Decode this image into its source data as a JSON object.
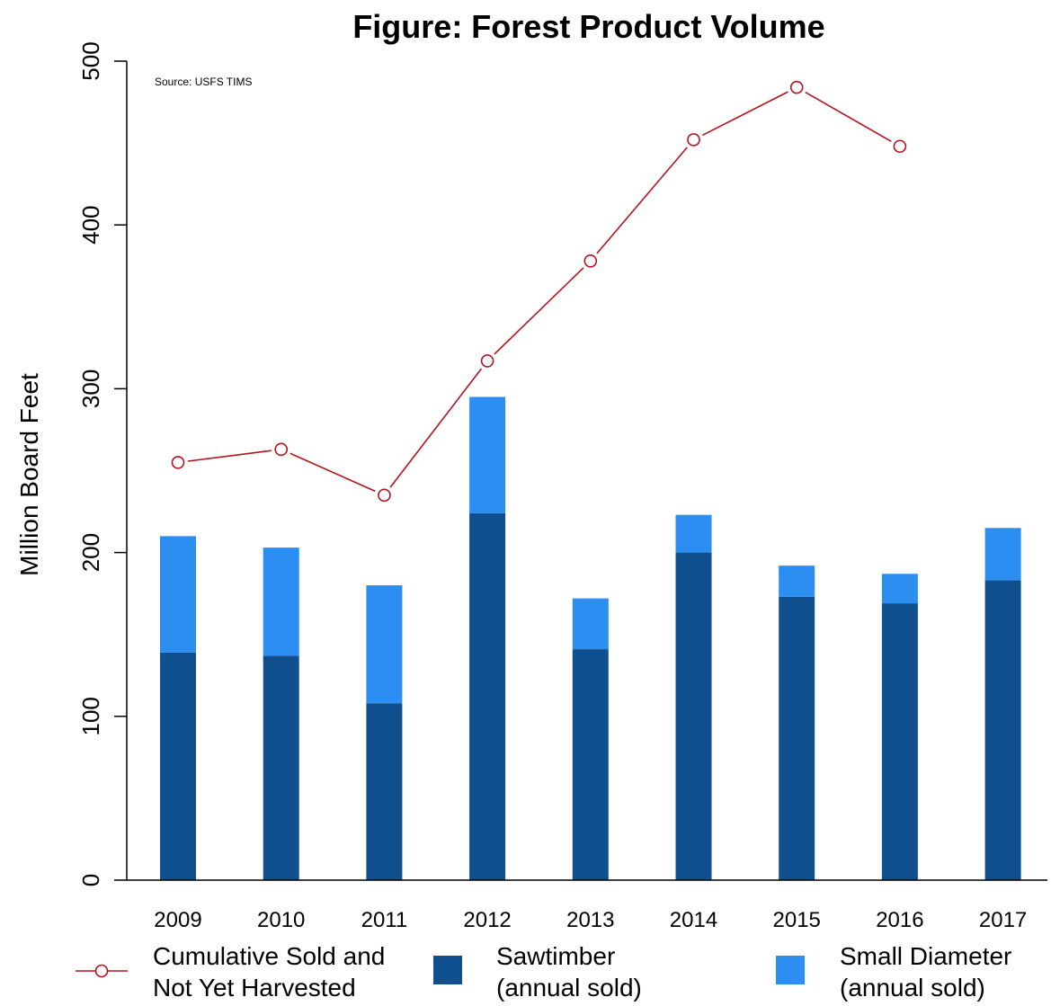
{
  "chart_data": {
    "type": "bar",
    "title": "Figure: Forest Product Volume",
    "annotation": "Source: USFS TIMS",
    "ylabel": "Million Board Feet",
    "xlabel": "",
    "ylim": [
      0,
      500
    ],
    "yticks": [
      0,
      100,
      200,
      300,
      400,
      500
    ],
    "categories": [
      "2009",
      "2010",
      "2011",
      "2012",
      "2013",
      "2014",
      "2015",
      "2016",
      "2017"
    ],
    "stacked": true,
    "series": [
      {
        "name": "Sawtimber (annual sold)",
        "type": "bar",
        "color": "#0f4f8e",
        "values": [
          139,
          137,
          108,
          224,
          141,
          200,
          173,
          169,
          183
        ],
        "legend_lines": [
          "Sawtimber",
          "(annual sold)"
        ]
      },
      {
        "name": "Small Diameter (annual sold)",
        "type": "bar",
        "color": "#2b8ef0",
        "values": [
          71,
          66,
          72,
          71,
          31,
          23,
          19,
          18,
          32
        ],
        "legend_lines": [
          "Small Diameter",
          "(annual sold)"
        ]
      },
      {
        "name": "Cumulative Sold and Not Yet Harvested",
        "type": "line",
        "color": "#b5121b",
        "values": [
          255,
          263,
          235,
          317,
          378,
          452,
          484,
          448,
          null
        ],
        "legend_lines": [
          "Cumulative Sold and",
          "Not Yet Harvested"
        ]
      }
    ],
    "grid": false,
    "legend_position": "bottom"
  }
}
